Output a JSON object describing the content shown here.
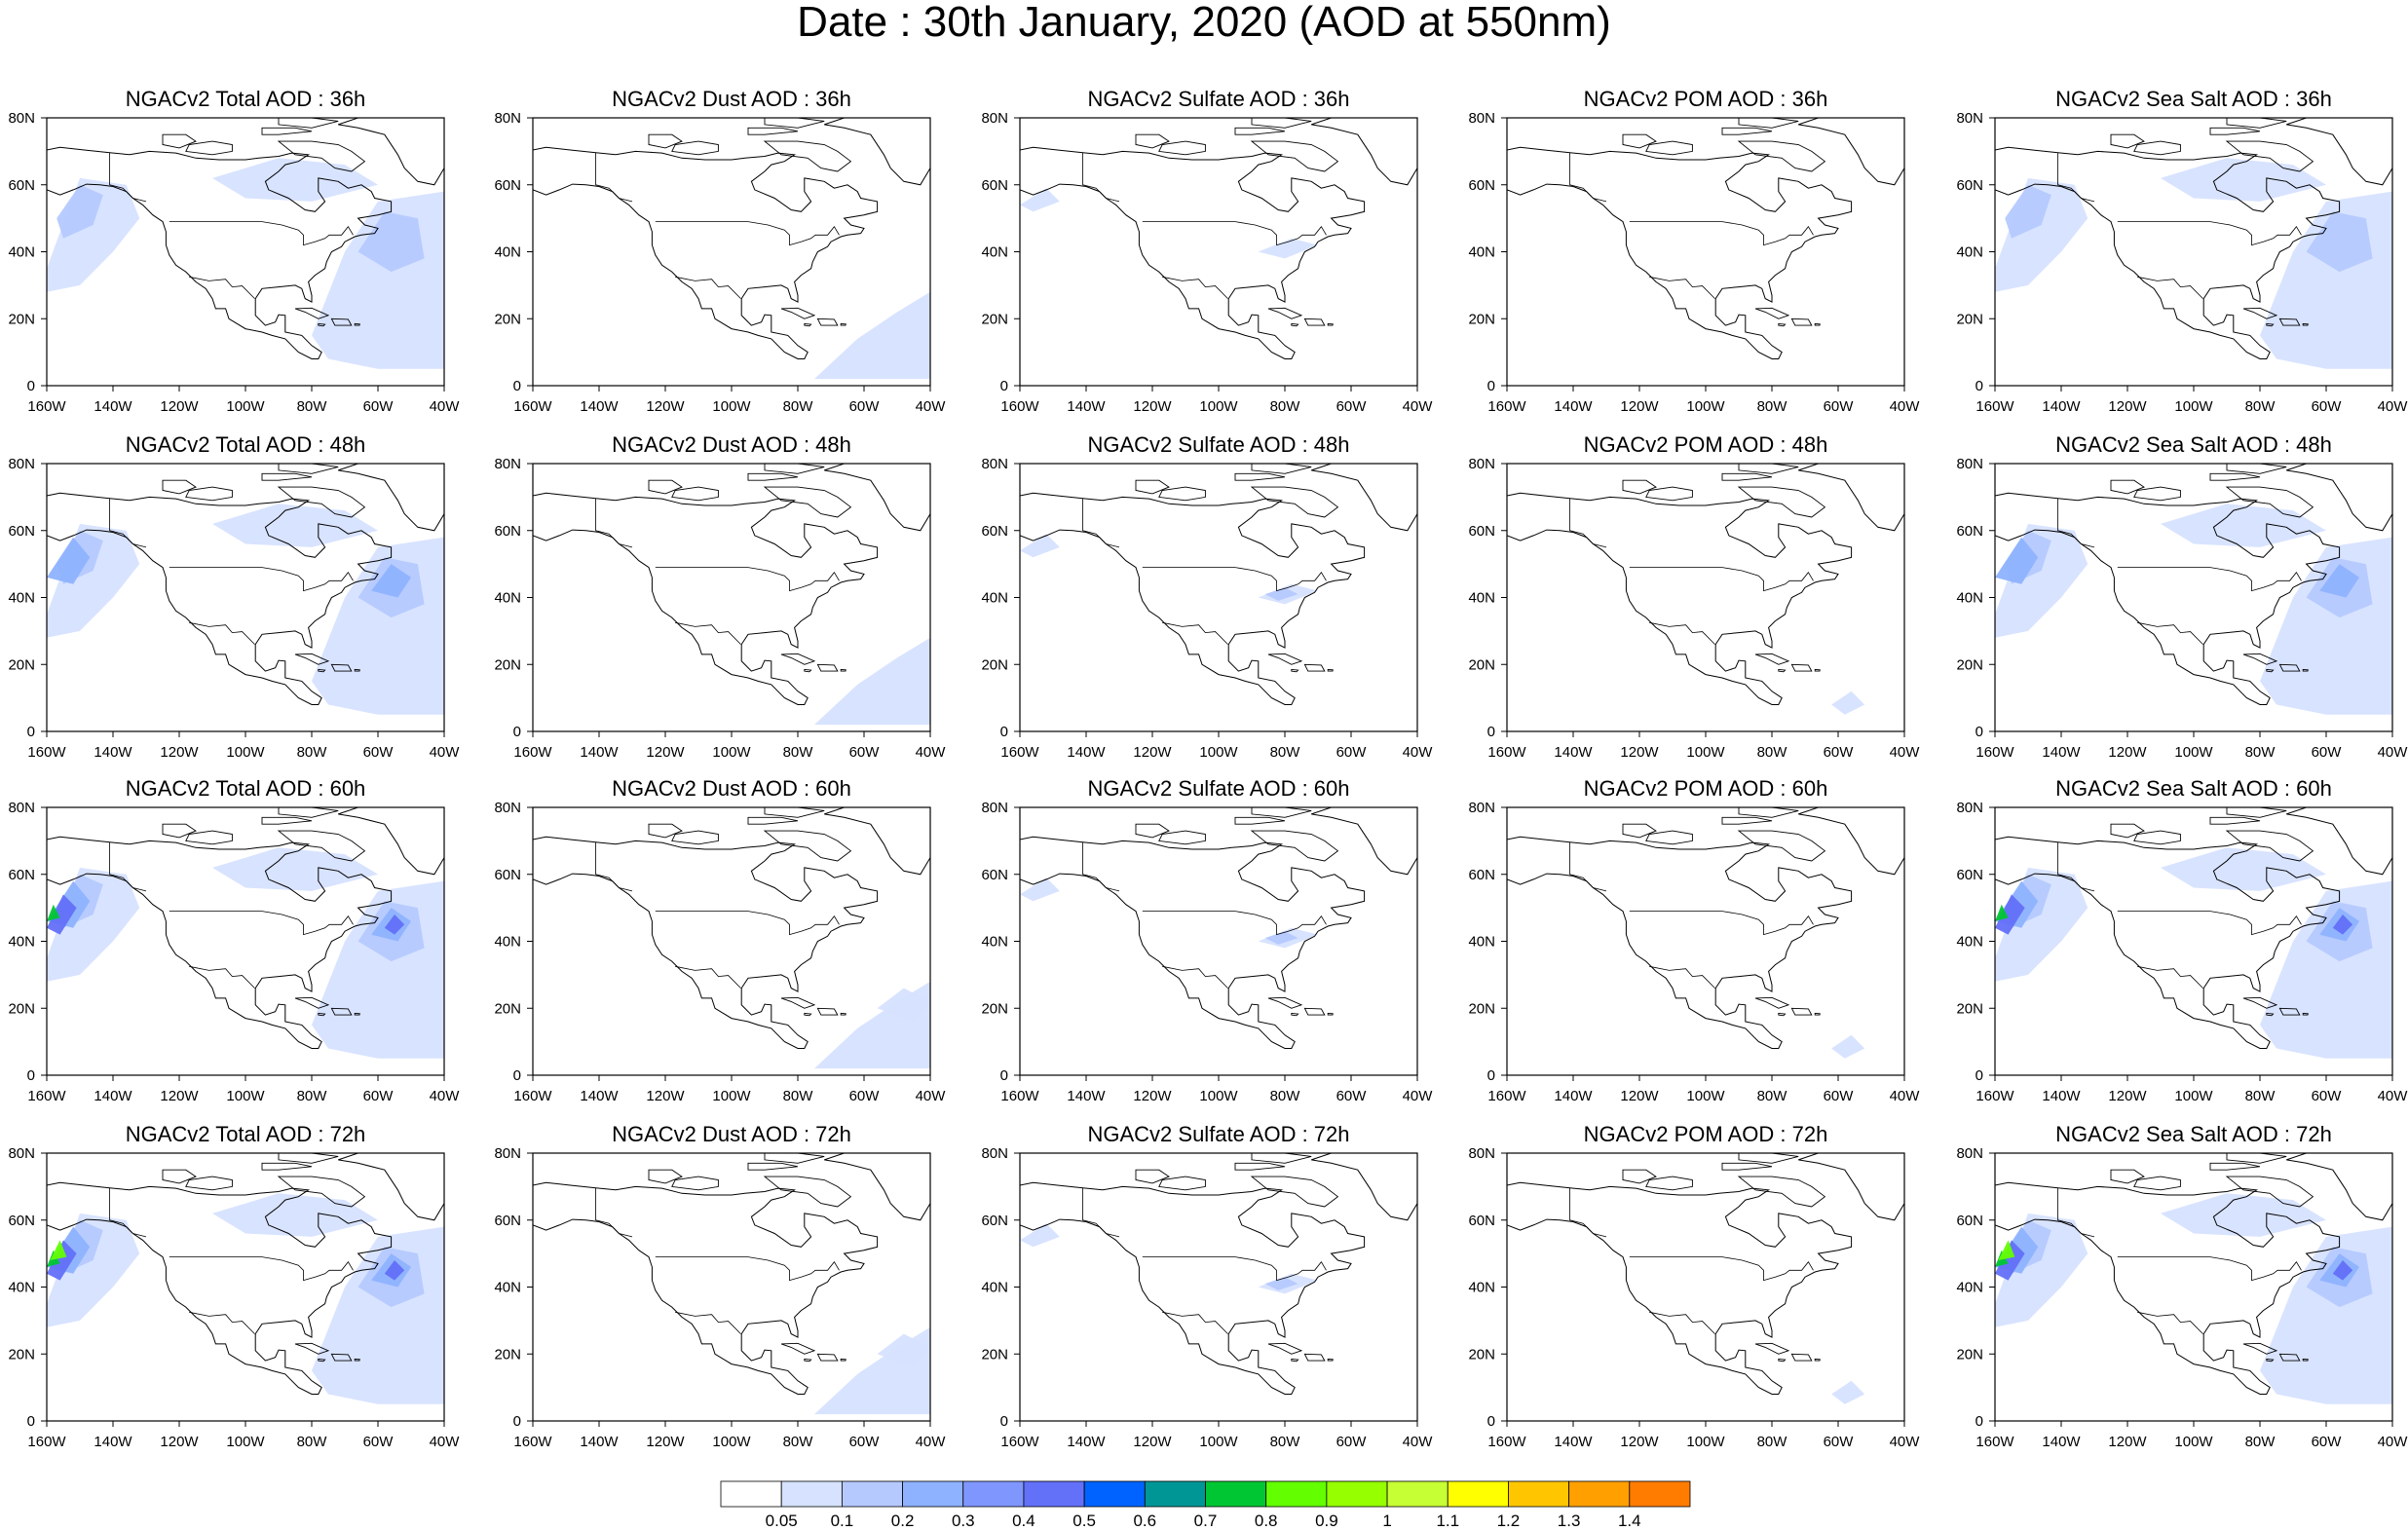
{
  "title": "Date : 30th January, 2020 (AOD at 550nm)",
  "chart_data": {
    "type": "heatmap",
    "title": "Date : 30th January, 2020 (AOD at 550nm)",
    "grid_columns": [
      "Total AOD",
      "Dust AOD",
      "Sulfate AOD",
      "POM AOD",
      "Sea Salt AOD"
    ],
    "grid_rows": [
      "36h",
      "48h",
      "60h",
      "72h"
    ],
    "x_ticks": [
      "160W",
      "140W",
      "120W",
      "100W",
      "80W",
      "60W",
      "40W"
    ],
    "y_ticks": [
      "0",
      "20N",
      "40N",
      "60N",
      "80N"
    ],
    "xlim": [
      -160,
      -40
    ],
    "ylim": [
      0,
      80
    ],
    "colorbar": {
      "labels": [
        "0.05",
        "0.1",
        "0.2",
        "0.3",
        "0.4",
        "0.5",
        "0.6",
        "0.7",
        "0.8",
        "0.9",
        "1",
        "1.1",
        "1.2",
        "1.3",
        "1.4"
      ],
      "colors": [
        "#ffffff",
        "#d6e2ff",
        "#b5c9ff",
        "#8eb2ff",
        "#7f96ff",
        "#6370f8",
        "#0063ff",
        "#009696",
        "#00c633",
        "#63ff00",
        "#96ff00",
        "#c6ff33",
        "#ffff00",
        "#ffc600",
        "#ffa000",
        "#ff7c00",
        "#ff1900"
      ]
    },
    "panels": [
      {
        "title": "NGACv2 Total AOD : 36h",
        "max_aod": 0.3
      },
      {
        "title": "NGACv2 Dust AOD : 36h",
        "max_aod": 0.1
      },
      {
        "title": "NGACv2 Sulfate AOD : 36h",
        "max_aod": 0.1
      },
      {
        "title": "NGACv2 POM AOD : 36h",
        "max_aod": 0.05
      },
      {
        "title": "NGACv2 Sea Salt AOD : 36h",
        "max_aod": 0.3
      },
      {
        "title": "NGACv2 Total AOD : 48h",
        "max_aod": 0.4
      },
      {
        "title": "NGACv2 Dust AOD : 48h",
        "max_aod": 0.1
      },
      {
        "title": "NGACv2 Sulfate AOD : 48h",
        "max_aod": 0.1
      },
      {
        "title": "NGACv2 POM AOD : 48h",
        "max_aod": 0.05
      },
      {
        "title": "NGACv2 Sea Salt AOD : 48h",
        "max_aod": 0.4
      },
      {
        "title": "NGACv2 Total AOD : 60h",
        "max_aod": 0.8
      },
      {
        "title": "NGACv2 Dust AOD : 60h",
        "max_aod": 0.1
      },
      {
        "title": "NGACv2 Sulfate AOD : 60h",
        "max_aod": 0.2
      },
      {
        "title": "NGACv2 POM AOD : 60h",
        "max_aod": 0.05
      },
      {
        "title": "NGACv2 Sea Salt AOD : 60h",
        "max_aod": 0.8
      },
      {
        "title": "NGACv2 Total AOD : 72h",
        "max_aod": 0.8
      },
      {
        "title": "NGACv2 Dust AOD : 72h",
        "max_aod": 0.1
      },
      {
        "title": "NGACv2 Sulfate AOD : 72h",
        "max_aod": 0.1
      },
      {
        "title": "NGACv2 POM AOD : 72h",
        "max_aod": 0.05
      },
      {
        "title": "NGACv2 Sea Salt  AOD : 72h",
        "max_aod": 0.8
      }
    ]
  }
}
